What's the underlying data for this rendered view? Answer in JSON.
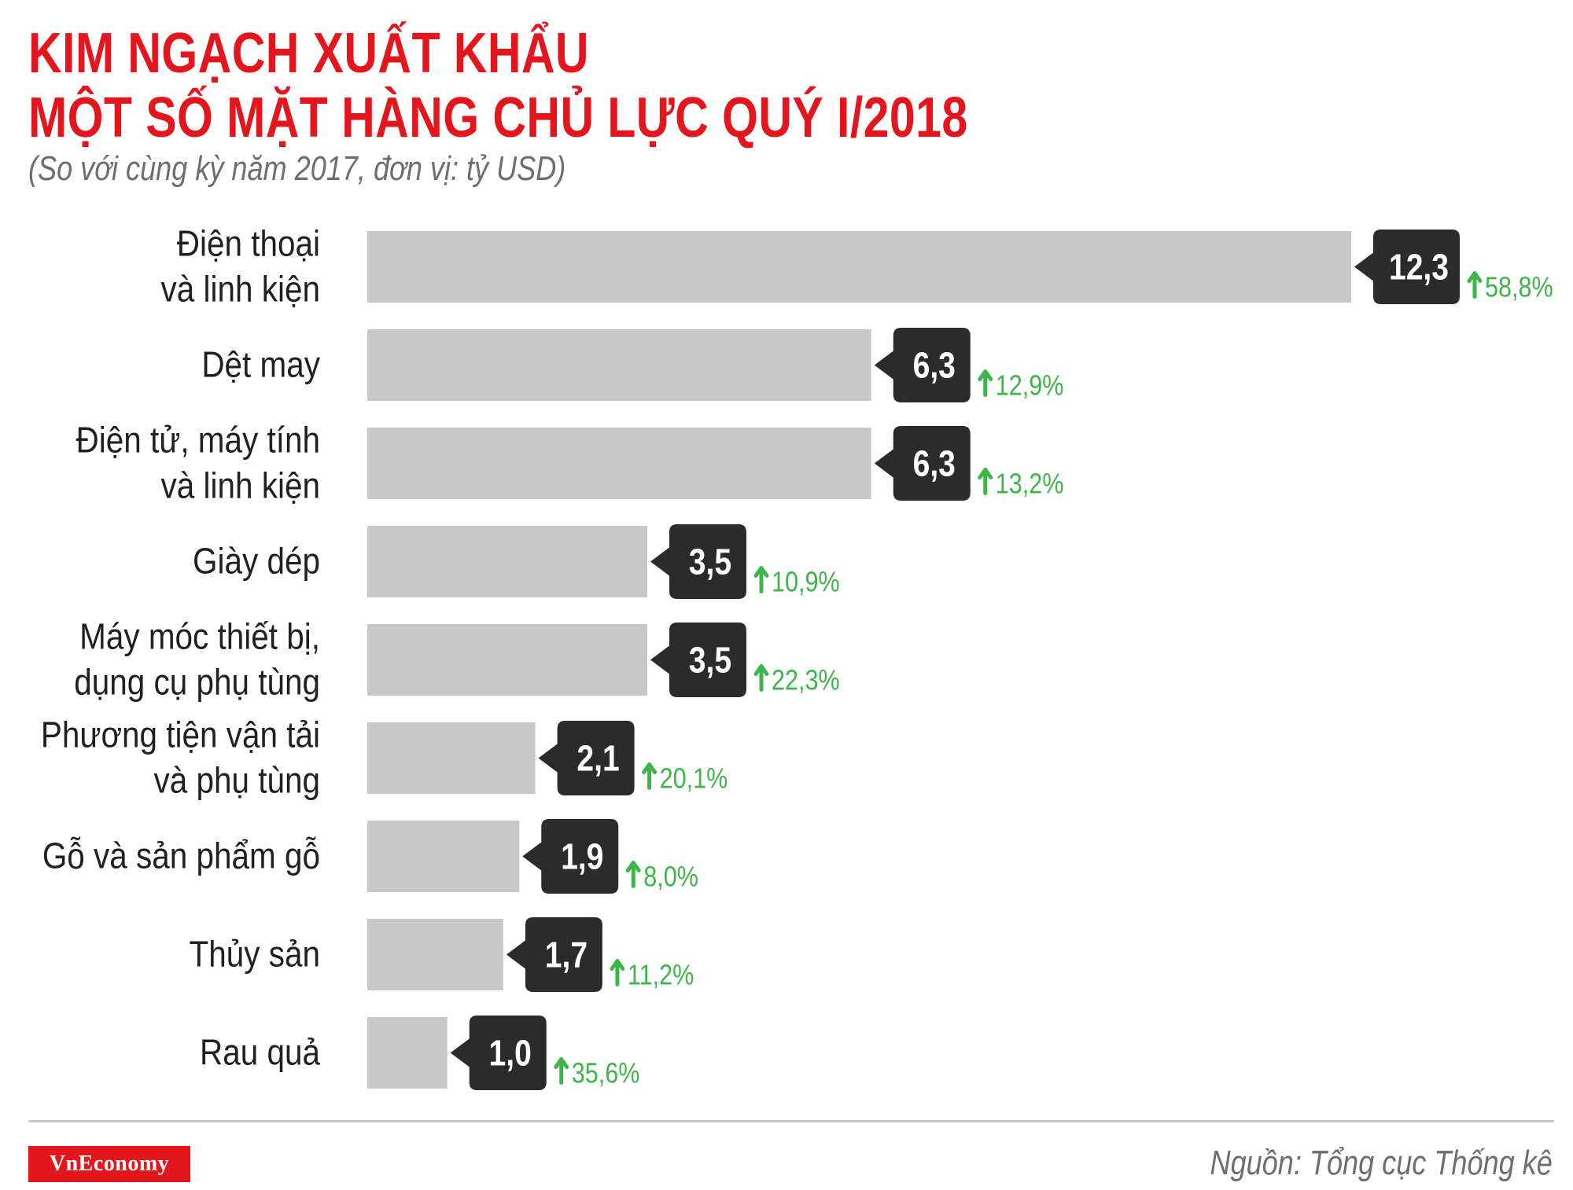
{
  "title": {
    "line1": "KIM NGẠCH XUẤT KHẨU",
    "line2": "MỘT SỐ MẶT HÀNG CHỦ LỰC QUÝ I/2018"
  },
  "subtitle": "(So với cùng kỳ năm 2017, đơn vị: tỷ USD)",
  "colors": {
    "title": "#e3161e",
    "bar": "#c9c8c9",
    "value_tag": "#2b2b2b",
    "growth": "#3db54a",
    "label": "#231f20",
    "muted": "#6d6e70"
  },
  "chart_data": {
    "type": "bar",
    "orientation": "horizontal",
    "unit": "tỷ USD",
    "categories": [
      [
        "Điện thoại",
        "và linh kiện"
      ],
      [
        "Dệt may"
      ],
      [
        "Điện tử, máy tính",
        "và linh kiện"
      ],
      [
        "Giày dép"
      ],
      [
        "Máy móc thiết bị,",
        "dụng cụ phụ tùng"
      ],
      [
        "Phương tiện vận tải",
        "và phụ tùng"
      ],
      [
        "Gỗ và sản phẩm gỗ"
      ],
      [
        "Thủy sản"
      ],
      [
        "Rau quả"
      ]
    ],
    "values": [
      12.3,
      6.3,
      6.3,
      3.5,
      3.5,
      2.1,
      1.9,
      1.7,
      1.0
    ],
    "value_labels": [
      "12,3",
      "6,3",
      "6,3",
      "3,5",
      "3,5",
      "2,1",
      "1,9",
      "1,7",
      "1,0"
    ],
    "growth_labels": [
      "58,8%",
      "12,9%",
      "13,2%",
      "10,9%",
      "22,3%",
      "20,1%",
      "8,0%",
      "11,2%",
      "35,6%"
    ],
    "growth_direction": "up",
    "xlim": [
      0,
      12.3
    ]
  },
  "footer": {
    "logo": "VnEconomy",
    "source": "Nguồn: Tổng cục Thống kê"
  }
}
